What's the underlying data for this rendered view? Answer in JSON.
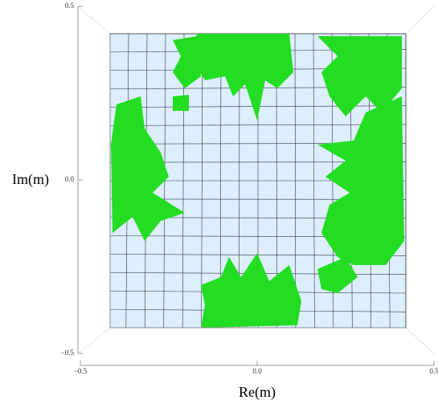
{
  "chart_data": {
    "type": "region",
    "xlabel": "Re(m)",
    "ylabel": "Im(m)",
    "xlim": [
      -0.5,
      0.5
    ],
    "ylim": [
      -0.5,
      0.5
    ],
    "xticks": [
      {
        "value": -0.5,
        "label": "−0.5"
      },
      {
        "value": 0,
        "label": "0.0"
      },
      0.5
    ],
    "yticks": [
      {
        "value": -0.5,
        "label": "−0.5"
      },
      {
        "value": 0,
        "label": "0.0"
      },
      0.5
    ],
    "region_color": "#22dd22",
    "background_color": "#ddeeff",
    "grid": true
  }
}
